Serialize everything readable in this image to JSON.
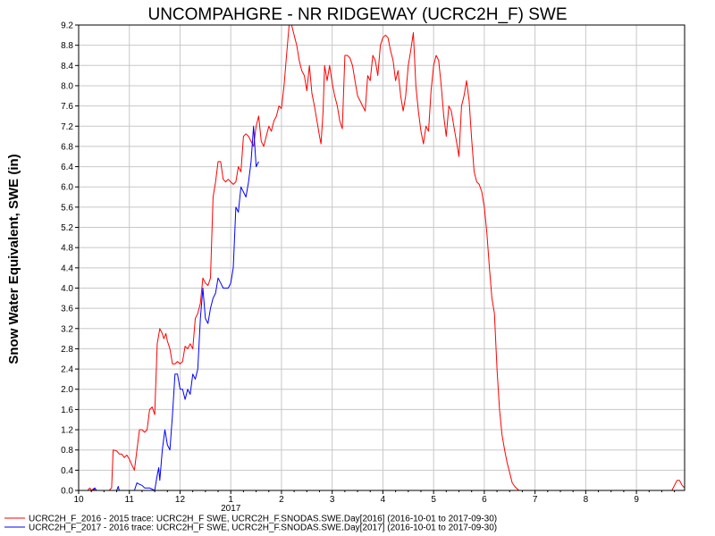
{
  "chart_data": {
    "type": "line",
    "title": "UNCOMPAHGRE - NR RIDGEWAY (UCRC2H_F) SWE",
    "ylabel": "Snow Water Equivalent, SWE (in)",
    "xlabel": "",
    "ylim": [
      0.0,
      9.2
    ],
    "yticks": [
      "0.0",
      "0.4",
      "0.8",
      "1.2",
      "1.6",
      "2.0",
      "2.4",
      "2.8",
      "3.2",
      "3.6",
      "4.0",
      "4.4",
      "4.8",
      "5.2",
      "5.6",
      "6.0",
      "6.4",
      "6.8",
      "7.2",
      "7.6",
      "8.0",
      "8.4",
      "8.8",
      "9.2"
    ],
    "xlim": [
      10.0,
      21.95
    ],
    "xticks": [
      {
        "x": 10,
        "label": "10"
      },
      {
        "x": 11,
        "label": "11"
      },
      {
        "x": 12,
        "label": "12"
      },
      {
        "x": 13,
        "label": "1"
      },
      {
        "x": 14,
        "label": "2"
      },
      {
        "x": 15,
        "label": "3"
      },
      {
        "x": 16,
        "label": "4"
      },
      {
        "x": 17,
        "label": "5"
      },
      {
        "x": 18,
        "label": "6"
      },
      {
        "x": 19,
        "label": "7"
      },
      {
        "x": 20,
        "label": "8"
      },
      {
        "x": 21,
        "label": "9"
      }
    ],
    "year_label": {
      "x": 13,
      "label": "2017"
    },
    "grid": true,
    "legend_position": "bottom-left",
    "series": [
      {
        "name": "UCRC2H_F_2016 - 2015 trace: UCRC2H_F SWE, UCRC2H_F.SNODAS.SWE.Day[2016] (2016-10-01 to 2017-09-30)",
        "color": "#ff0000",
        "points": [
          [
            10.18,
            0.0
          ],
          [
            10.22,
            0.05
          ],
          [
            10.25,
            0.0
          ],
          [
            10.3,
            0.04
          ],
          [
            10.32,
            0.0
          ],
          [
            10.6,
            0.0
          ],
          [
            10.65,
            0.05
          ],
          [
            10.68,
            0.8
          ],
          [
            10.75,
            0.78
          ],
          [
            10.8,
            0.72
          ],
          [
            10.85,
            0.72
          ],
          [
            10.9,
            0.65
          ],
          [
            10.95,
            0.7
          ],
          [
            11.0,
            0.62
          ],
          [
            11.05,
            0.5
          ],
          [
            11.1,
            0.4
          ],
          [
            11.15,
            0.8
          ],
          [
            11.2,
            1.2
          ],
          [
            11.25,
            1.2
          ],
          [
            11.3,
            1.15
          ],
          [
            11.35,
            1.2
          ],
          [
            11.4,
            1.6
          ],
          [
            11.45,
            1.65
          ],
          [
            11.5,
            1.5
          ],
          [
            11.55,
            2.9
          ],
          [
            11.6,
            3.2
          ],
          [
            11.65,
            3.1
          ],
          [
            11.68,
            3.0
          ],
          [
            11.72,
            3.1
          ],
          [
            11.75,
            2.95
          ],
          [
            11.8,
            2.8
          ],
          [
            11.85,
            2.5
          ],
          [
            11.9,
            2.5
          ],
          [
            11.95,
            2.55
          ],
          [
            12.0,
            2.5
          ],
          [
            12.05,
            2.55
          ],
          [
            12.1,
            2.85
          ],
          [
            12.15,
            2.8
          ],
          [
            12.2,
            2.9
          ],
          [
            12.25,
            2.8
          ],
          [
            12.3,
            3.4
          ],
          [
            12.35,
            3.5
          ],
          [
            12.4,
            3.7
          ],
          [
            12.45,
            4.2
          ],
          [
            12.5,
            4.1
          ],
          [
            12.55,
            4.05
          ],
          [
            12.6,
            4.2
          ],
          [
            12.65,
            5.8
          ],
          [
            12.7,
            6.1
          ],
          [
            12.75,
            6.5
          ],
          [
            12.8,
            6.5
          ],
          [
            12.85,
            6.15
          ],
          [
            12.9,
            6.1
          ],
          [
            12.95,
            6.15
          ],
          [
            13.0,
            6.1
          ],
          [
            13.05,
            6.05
          ],
          [
            13.1,
            6.1
          ],
          [
            13.15,
            6.4
          ],
          [
            13.2,
            6.3
          ],
          [
            13.25,
            7.0
          ],
          [
            13.3,
            7.05
          ],
          [
            13.35,
            7.0
          ],
          [
            13.4,
            6.9
          ],
          [
            13.45,
            6.8
          ],
          [
            13.5,
            7.2
          ],
          [
            13.55,
            7.4
          ],
          [
            13.6,
            6.9
          ],
          [
            13.65,
            6.8
          ],
          [
            13.7,
            7.0
          ],
          [
            13.75,
            7.2
          ],
          [
            13.8,
            7.1
          ],
          [
            13.85,
            7.3
          ],
          [
            13.9,
            7.4
          ],
          [
            13.95,
            7.6
          ],
          [
            14.0,
            7.55
          ],
          [
            14.05,
            8.0
          ],
          [
            14.1,
            8.6
          ],
          [
            14.15,
            9.2
          ],
          [
            14.2,
            9.2
          ],
          [
            14.25,
            9.0
          ],
          [
            14.3,
            8.8
          ],
          [
            14.35,
            8.5
          ],
          [
            14.4,
            8.3
          ],
          [
            14.45,
            8.2
          ],
          [
            14.5,
            7.9
          ],
          [
            14.55,
            8.4
          ],
          [
            14.6,
            7.85
          ],
          [
            14.65,
            7.6
          ],
          [
            14.7,
            7.3
          ],
          [
            14.75,
            7.0
          ],
          [
            14.78,
            6.85
          ],
          [
            14.82,
            7.5
          ],
          [
            14.85,
            8.4
          ],
          [
            14.9,
            8.1
          ],
          [
            14.95,
            8.4
          ],
          [
            15.0,
            8.05
          ],
          [
            15.05,
            7.8
          ],
          [
            15.1,
            7.6
          ],
          [
            15.15,
            7.3
          ],
          [
            15.2,
            7.15
          ],
          [
            15.25,
            8.6
          ],
          [
            15.3,
            8.6
          ],
          [
            15.35,
            8.55
          ],
          [
            15.4,
            8.4
          ],
          [
            15.45,
            8.1
          ],
          [
            15.5,
            7.8
          ],
          [
            15.55,
            7.7
          ],
          [
            15.6,
            7.6
          ],
          [
            15.65,
            7.5
          ],
          [
            15.7,
            8.2
          ],
          [
            15.75,
            8.1
          ],
          [
            15.8,
            8.6
          ],
          [
            15.85,
            8.5
          ],
          [
            15.9,
            8.2
          ],
          [
            15.95,
            8.8
          ],
          [
            16.0,
            8.95
          ],
          [
            16.05,
            9.0
          ],
          [
            16.1,
            8.95
          ],
          [
            16.15,
            8.7
          ],
          [
            16.2,
            8.5
          ],
          [
            16.25,
            8.1
          ],
          [
            16.3,
            8.3
          ],
          [
            16.35,
            7.8
          ],
          [
            16.4,
            7.5
          ],
          [
            16.45,
            7.8
          ],
          [
            16.5,
            8.4
          ],
          [
            16.55,
            8.7
          ],
          [
            16.6,
            9.05
          ],
          [
            16.65,
            8.0
          ],
          [
            16.7,
            7.5
          ],
          [
            16.75,
            7.1
          ],
          [
            16.8,
            6.85
          ],
          [
            16.85,
            7.2
          ],
          [
            16.9,
            7.1
          ],
          [
            16.95,
            7.9
          ],
          [
            17.0,
            8.4
          ],
          [
            17.05,
            8.6
          ],
          [
            17.1,
            8.5
          ],
          [
            17.15,
            8.0
          ],
          [
            17.2,
            7.4
          ],
          [
            17.25,
            7.0
          ],
          [
            17.3,
            7.6
          ],
          [
            17.35,
            7.5
          ],
          [
            17.4,
            7.2
          ],
          [
            17.45,
            6.9
          ],
          [
            17.5,
            6.6
          ],
          [
            17.55,
            7.6
          ],
          [
            17.6,
            7.8
          ],
          [
            17.65,
            8.1
          ],
          [
            17.7,
            7.7
          ],
          [
            17.75,
            6.95
          ],
          [
            17.8,
            6.3
          ],
          [
            17.85,
            6.1
          ],
          [
            17.9,
            6.05
          ],
          [
            17.95,
            5.9
          ],
          [
            18.0,
            5.6
          ],
          [
            18.05,
            5.1
          ],
          [
            18.1,
            4.4
          ],
          [
            18.15,
            3.8
          ],
          [
            18.2,
            3.5
          ],
          [
            18.25,
            2.4
          ],
          [
            18.3,
            1.6
          ],
          [
            18.35,
            1.1
          ],
          [
            18.4,
            0.8
          ],
          [
            18.45,
            0.55
          ],
          [
            18.5,
            0.35
          ],
          [
            18.55,
            0.15
          ],
          [
            18.6,
            0.08
          ],
          [
            18.68,
            0.0
          ],
          [
            21.7,
            0.0
          ],
          [
            21.8,
            0.2
          ],
          [
            21.85,
            0.2
          ],
          [
            21.9,
            0.1
          ],
          [
            21.95,
            0.05
          ]
        ]
      },
      {
        "name": "UCRC2H_F_2017 - 2016 trace: UCRC2H_F SWE, UCRC2H_F.SNODAS.SWE.Day[2017] (2016-10-01 to 2017-09-30)",
        "color": "#0000ff",
        "points": [
          [
            10.28,
            0.0
          ],
          [
            10.32,
            0.05
          ],
          [
            10.35,
            0.0
          ],
          [
            10.75,
            0.0
          ],
          [
            10.78,
            0.08
          ],
          [
            10.8,
            0.0
          ],
          [
            11.1,
            0.0
          ],
          [
            11.15,
            0.15
          ],
          [
            11.2,
            0.12
          ],
          [
            11.25,
            0.1
          ],
          [
            11.3,
            0.05
          ],
          [
            11.4,
            0.05
          ],
          [
            11.5,
            0.0
          ],
          [
            11.55,
            0.3
          ],
          [
            11.58,
            0.45
          ],
          [
            11.6,
            0.2
          ],
          [
            11.65,
            0.8
          ],
          [
            11.7,
            1.2
          ],
          [
            11.75,
            0.9
          ],
          [
            11.8,
            0.8
          ],
          [
            11.85,
            1.5
          ],
          [
            11.9,
            2.3
          ],
          [
            11.95,
            2.3
          ],
          [
            12.0,
            2.0
          ],
          [
            12.05,
            2.0
          ],
          [
            12.1,
            1.8
          ],
          [
            12.15,
            2.0
          ],
          [
            12.2,
            1.9
          ],
          [
            12.25,
            2.3
          ],
          [
            12.3,
            2.2
          ],
          [
            12.35,
            2.4
          ],
          [
            12.4,
            3.4
          ],
          [
            12.45,
            4.0
          ],
          [
            12.5,
            3.4
          ],
          [
            12.55,
            3.3
          ],
          [
            12.6,
            3.6
          ],
          [
            12.65,
            3.8
          ],
          [
            12.7,
            3.9
          ],
          [
            12.75,
            4.2
          ],
          [
            12.8,
            4.1
          ],
          [
            12.85,
            4.0
          ],
          [
            12.9,
            4.0
          ],
          [
            12.95,
            4.0
          ],
          [
            13.0,
            4.1
          ],
          [
            13.05,
            4.4
          ],
          [
            13.1,
            5.6
          ],
          [
            13.15,
            5.5
          ],
          [
            13.2,
            6.0
          ],
          [
            13.25,
            5.9
          ],
          [
            13.3,
            5.8
          ],
          [
            13.35,
            6.1
          ],
          [
            13.4,
            6.5
          ],
          [
            13.45,
            7.2
          ],
          [
            13.5,
            6.4
          ],
          [
            13.55,
            6.5
          ]
        ]
      }
    ]
  }
}
